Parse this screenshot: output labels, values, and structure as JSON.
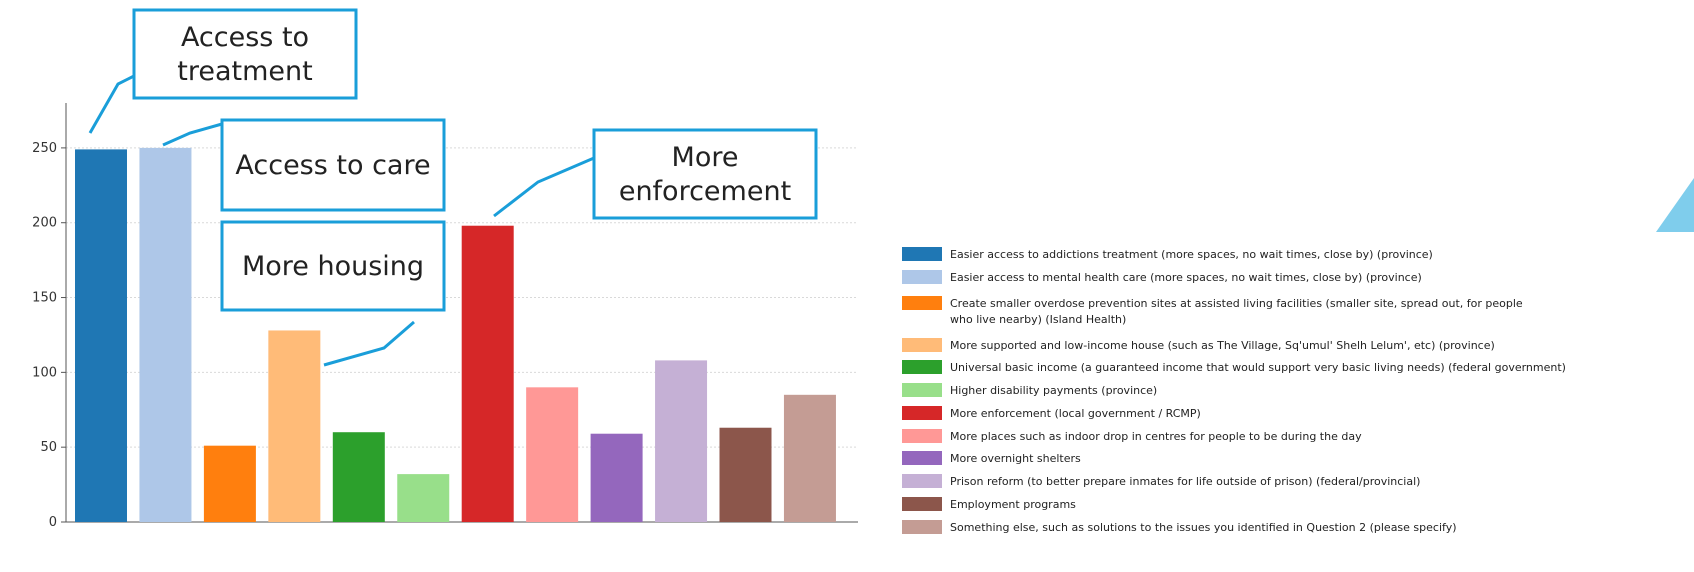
{
  "chart_data": {
    "type": "bar",
    "title": "",
    "xlabel": "",
    "ylabel": "",
    "ylim": [
      0,
      280
    ],
    "yticks": [
      0,
      50,
      100,
      150,
      200,
      250
    ],
    "grid": "horizontal",
    "legend_position": "right",
    "categories": [
      "Easier access to addictions treatment (more spaces, no wait times, close by) (province)",
      "Easier access to mental health care (more spaces, no wait times, close by) (province)",
      "Create smaller overdose prevention sites at assisted living facilities (smaller site, spread out, for people who live nearby) (Island Health)",
      "More supported and low-income house (such as The Village, Sq'umul' Shelh Lelum', etc) (province)",
      "Universal basic income (a guaranteed income that would support very basic living needs) (federal government)",
      "Higher disability payments (province)",
      "More enforcement (local government / RCMP)",
      "More places such as indoor drop in centres for people to be during the day",
      "More overnight shelters",
      "Prison reform (to better prepare inmates for life outside of prison) (federal/provincial)",
      "Employment programs",
      "Something else, such as solutions to the issues you identified in Question 2 (please specify)"
    ],
    "legend_lines": [
      [
        "Easier access to addictions treatment (more spaces, no wait times, close by) (province)"
      ],
      [
        "Easier access to mental health care (more spaces, no wait times, close by) (province)"
      ],
      [
        "Create smaller overdose prevention sites at assisted living facilities (smaller site, spread out, for people",
        "who live nearby) (Island Health)"
      ],
      [
        "More supported and low-income house (such as The Village, Sq'umul' Shelh Lelum', etc) (province)"
      ],
      [
        "Universal basic income (a guaranteed income that would support very basic living needs) (federal government)"
      ],
      [
        "Higher disability payments (province)"
      ],
      [
        "More enforcement (local government / RCMP)"
      ],
      [
        "More places such as indoor drop in centres for people to be during the day"
      ],
      [
        "More overnight shelters"
      ],
      [
        "Prison reform (to better prepare inmates for life outside of prison) (federal/provincial)"
      ],
      [
        "Employment programs"
      ],
      [
        "Something else, such as solutions to the issues you identified in Question 2 (please specify)"
      ]
    ],
    "values": [
      249,
      250,
      51,
      128,
      60,
      32,
      198,
      90,
      59,
      108,
      63,
      85
    ],
    "colors": [
      "#1f77b4",
      "#aec7e8",
      "#ff7f0e",
      "#ffbb78",
      "#2ca02c",
      "#98df8a",
      "#d62728",
      "#ff9896",
      "#9467bd",
      "#c5b0d5",
      "#8c564b",
      "#c49c94"
    ],
    "annotations": [
      {
        "lines": [
          "Access to",
          "treatment"
        ],
        "bar": 0
      },
      {
        "lines": [
          "Access to care"
        ],
        "bar": 1
      },
      {
        "lines": [
          "More housing"
        ],
        "bar": 3
      },
      {
        "lines": [
          "More",
          "enforcement"
        ],
        "bar": 6
      }
    ]
  },
  "colors": {
    "callout_border": "#1a9ed9",
    "accent_shape": "#7fcdec",
    "grid": "#d9d9d9",
    "axis": "#555555"
  }
}
